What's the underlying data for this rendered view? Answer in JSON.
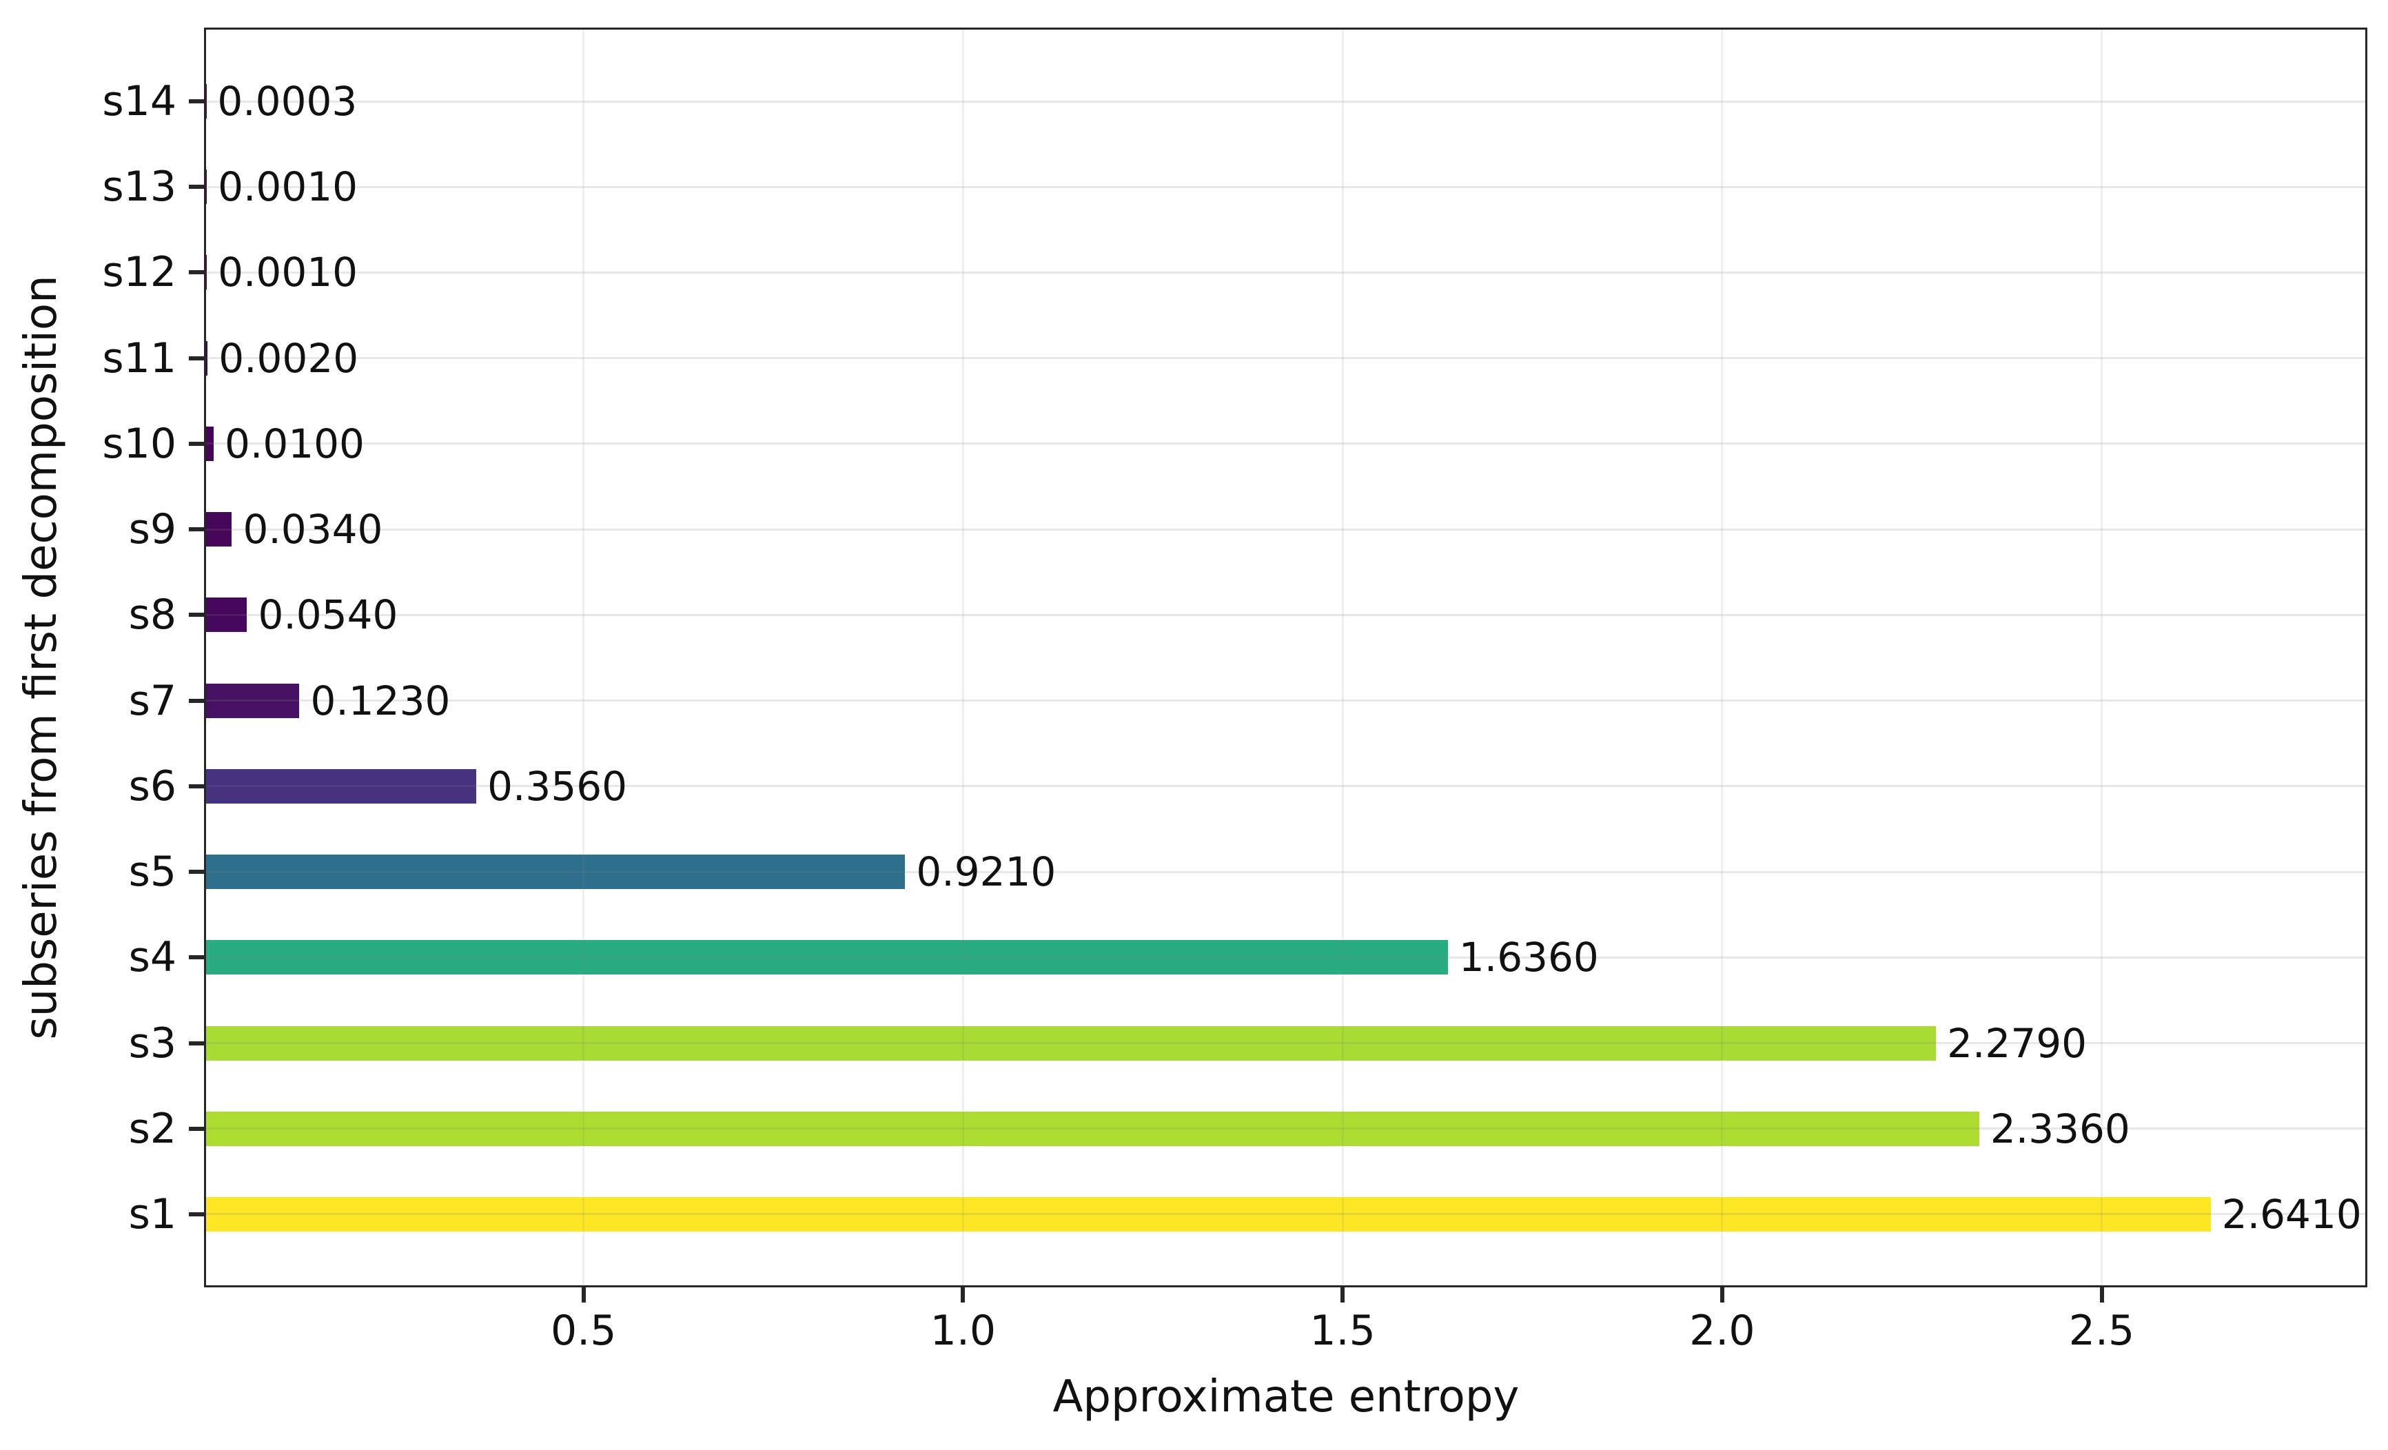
{
  "chart_data": {
    "type": "bar",
    "orientation": "horizontal",
    "title": "",
    "xlabel": "Approximate entropy",
    "ylabel": "subseries from first decomposition",
    "xlim": [
      0,
      2.85
    ],
    "xticks": [
      {
        "value": 0.5,
        "label": "0.5"
      },
      {
        "value": 1.0,
        "label": "1.0"
      },
      {
        "value": 1.5,
        "label": "1.5"
      },
      {
        "value": 2.0,
        "label": "2.0"
      },
      {
        "value": 2.5,
        "label": "2.5"
      }
    ],
    "grid": true,
    "legend": false,
    "colormap": "viridis",
    "bar_height_fraction": 0.4,
    "frame_color": "#262626",
    "text_color": "#111111",
    "background_color": "#ffffff",
    "bars_top_to_bottom": [
      {
        "category": "s14",
        "value": 0.0003,
        "label": "0.0003",
        "color": "#440154"
      },
      {
        "category": "s13",
        "value": 0.001,
        "label": "0.0010",
        "color": "#440154"
      },
      {
        "category": "s12",
        "value": 0.001,
        "label": "0.0010",
        "color": "#440154"
      },
      {
        "category": "s11",
        "value": 0.002,
        "label": "0.0020",
        "color": "#440256"
      },
      {
        "category": "s10",
        "value": 0.01,
        "label": "0.0100",
        "color": "#450457"
      },
      {
        "category": "s9",
        "value": 0.034,
        "label": "0.0340",
        "color": "#46065a"
      },
      {
        "category": "s8",
        "value": 0.054,
        "label": "0.0540",
        "color": "#46085c"
      },
      {
        "category": "s7",
        "value": 0.123,
        "label": "0.1230",
        "color": "#471063"
      },
      {
        "category": "s6",
        "value": 0.356,
        "label": "0.3560",
        "color": "#46327e"
      },
      {
        "category": "s5",
        "value": 0.921,
        "label": "0.9210",
        "color": "#2e6f8e"
      },
      {
        "category": "s4",
        "value": 1.636,
        "label": "1.6360",
        "color": "#29ab81"
      },
      {
        "category": "s3",
        "value": 2.279,
        "label": "2.2790",
        "color": "#a8db34"
      },
      {
        "category": "s2",
        "value": 2.336,
        "label": "2.3360",
        "color": "#addc30"
      },
      {
        "category": "s1",
        "value": 2.641,
        "label": "2.6410",
        "color": "#fde725"
      }
    ]
  }
}
